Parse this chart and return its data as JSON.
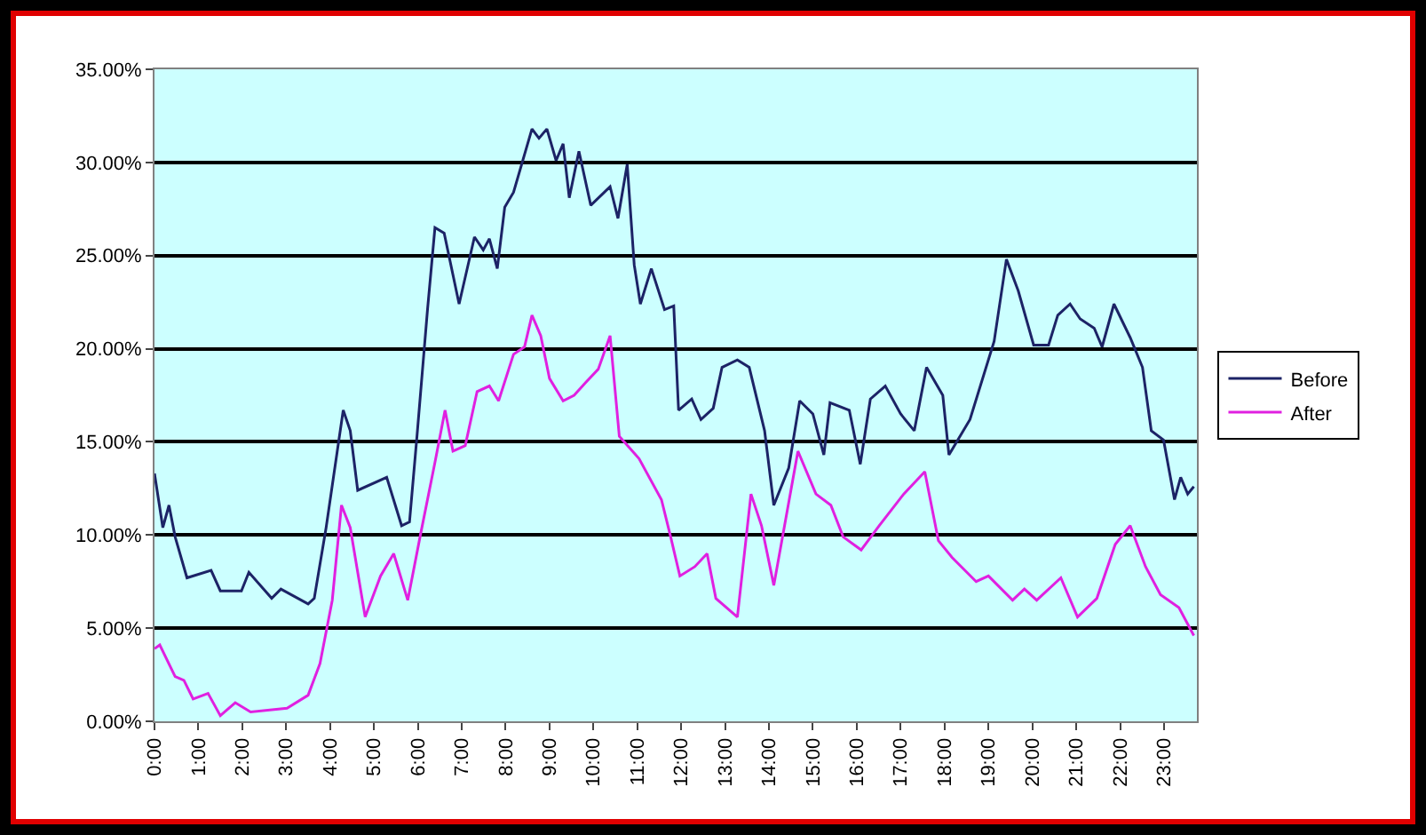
{
  "chart_data": {
    "type": "line",
    "xlim": [
      0,
      23.75
    ],
    "xticks": [
      {
        "value": 0,
        "label": "0:00"
      },
      {
        "value": 1,
        "label": "1:00"
      },
      {
        "value": 2,
        "label": "2:00"
      },
      {
        "value": 3,
        "label": "3:00"
      },
      {
        "value": 4,
        "label": "4:00"
      },
      {
        "value": 5,
        "label": "5:00"
      },
      {
        "value": 6,
        "label": "6:00"
      },
      {
        "value": 7,
        "label": "7:00"
      },
      {
        "value": 8,
        "label": "8:00"
      },
      {
        "value": 9,
        "label": "9:00"
      },
      {
        "value": 10,
        "label": "10:00"
      },
      {
        "value": 11,
        "label": "11:00"
      },
      {
        "value": 12,
        "label": "12:00"
      },
      {
        "value": 13,
        "label": "13:00"
      },
      {
        "value": 14,
        "label": "14:00"
      },
      {
        "value": 15,
        "label": "15:00"
      },
      {
        "value": 16,
        "label": "16:00"
      },
      {
        "value": 17,
        "label": "17:00"
      },
      {
        "value": 18,
        "label": "18:00"
      },
      {
        "value": 19,
        "label": "19:00"
      },
      {
        "value": 20,
        "label": "20:00"
      },
      {
        "value": 21,
        "label": "21:00"
      },
      {
        "value": 22,
        "label": "22:00"
      },
      {
        "value": 23,
        "label": "23:00"
      }
    ],
    "ylim": [
      0,
      35
    ],
    "yticks": [
      {
        "value": 0,
        "label": "0.00%"
      },
      {
        "value": 5,
        "label": "5.00%"
      },
      {
        "value": 10,
        "label": "10.00%"
      },
      {
        "value": 15,
        "label": "15.00%"
      },
      {
        "value": 20,
        "label": "20.00%"
      },
      {
        "value": 25,
        "label": "25.00%"
      },
      {
        "value": 30,
        "label": "30.00%"
      },
      {
        "value": 35,
        "label": "35.00%"
      }
    ],
    "grid": "y",
    "legend": "right",
    "marker": "none",
    "line_style": "solid",
    "series": [
      {
        "name": "Before",
        "color": "#1c2366",
        "x": [
          0,
          0.19,
          0.33,
          0.47,
          0.74,
          1.29,
          1.5,
          1.98,
          2.15,
          2.67,
          2.88,
          3.5,
          3.64,
          3.91,
          4.3,
          4.46,
          4.63,
          5.29,
          5.63,
          5.81,
          5.98,
          6.22,
          6.39,
          6.6,
          6.94,
          7.29,
          7.49,
          7.63,
          7.81,
          7.98,
          8.18,
          8.6,
          8.76,
          8.94,
          9.15,
          9.31,
          9.45,
          9.67,
          9.94,
          10.38,
          10.56,
          10.77,
          10.93,
          11.07,
          11.32,
          11.62,
          11.83,
          11.94,
          12.24,
          12.45,
          12.73,
          12.93,
          13.28,
          13.55,
          13.9,
          14.11,
          14.45,
          14.7,
          15.0,
          15.25,
          15.39,
          15.83,
          16.08,
          16.31,
          16.65,
          17.0,
          17.31,
          17.59,
          17.96,
          18.1,
          18.58,
          19.13,
          19.41,
          19.68,
          20.03,
          20.37,
          20.58,
          20.86,
          21.09,
          21.41,
          21.59,
          21.86,
          22.23,
          22.51,
          22.71,
          22.99,
          23.24,
          23.38,
          23.54,
          23.68
        ],
        "values": [
          13.3,
          10.4,
          11.6,
          9.9,
          7.7,
          8.1,
          7.0,
          7.0,
          8.0,
          6.6,
          7.1,
          6.3,
          6.6,
          10.4,
          16.7,
          15.6,
          12.4,
          13.1,
          10.5,
          10.7,
          15.3,
          22.1,
          26.5,
          26.2,
          22.4,
          26.0,
          25.3,
          25.9,
          24.3,
          27.6,
          28.4,
          31.8,
          31.3,
          31.8,
          30.1,
          31.0,
          28.1,
          30.6,
          27.7,
          28.7,
          27.0,
          29.9,
          24.5,
          22.4,
          24.3,
          22.1,
          22.3,
          16.7,
          17.3,
          16.2,
          16.8,
          19.0,
          19.4,
          19.0,
          15.6,
          11.6,
          13.6,
          17.2,
          16.5,
          14.3,
          17.1,
          16.7,
          13.8,
          17.3,
          18.0,
          16.5,
          15.6,
          19.0,
          17.5,
          14.3,
          16.2,
          20.4,
          24.8,
          23.1,
          20.2,
          20.2,
          21.8,
          22.4,
          21.6,
          21.1,
          20.1,
          22.4,
          20.6,
          19.0,
          15.6,
          15.1,
          11.9,
          13.1,
          12.2,
          12.6
        ]
      },
      {
        "name": "After",
        "color": "#e020e0",
        "x": [
          0,
          0.12,
          0.47,
          0.67,
          0.88,
          1.22,
          1.5,
          1.84,
          2.19,
          3.02,
          3.5,
          3.77,
          4.05,
          4.26,
          4.46,
          4.8,
          5.15,
          5.45,
          5.77,
          6.05,
          6.39,
          6.62,
          6.8,
          7.08,
          7.35,
          7.63,
          7.84,
          8.18,
          8.43,
          8.6,
          8.8,
          9.0,
          9.31,
          9.56,
          9.83,
          10.11,
          10.38,
          10.59,
          11.04,
          11.55,
          11.76,
          11.97,
          12.31,
          12.59,
          12.79,
          13.28,
          13.59,
          13.83,
          14.11,
          14.66,
          15.07,
          15.41,
          15.69,
          16.1,
          16.51,
          17.07,
          17.55,
          17.86,
          18.17,
          18.72,
          19.0,
          19.55,
          19.82,
          20.1,
          20.65,
          21.03,
          21.47,
          21.89,
          22.23,
          22.58,
          22.92,
          23.34,
          23.68
        ],
        "values": [
          3.9,
          4.1,
          2.4,
          2.2,
          1.2,
          1.5,
          0.3,
          1.0,
          0.5,
          0.7,
          1.4,
          3.1,
          6.5,
          11.6,
          10.4,
          5.6,
          7.8,
          9.0,
          6.5,
          9.9,
          13.9,
          16.7,
          14.5,
          14.8,
          17.7,
          18.0,
          17.2,
          19.7,
          20.1,
          21.8,
          20.7,
          18.4,
          17.2,
          17.5,
          18.2,
          18.9,
          20.7,
          15.3,
          14.1,
          11.9,
          9.9,
          7.8,
          8.3,
          9.0,
          6.6,
          5.6,
          12.2,
          10.5,
          7.3,
          14.5,
          12.2,
          11.6,
          9.9,
          9.2,
          10.5,
          12.2,
          13.4,
          9.7,
          8.8,
          7.5,
          7.8,
          6.5,
          7.1,
          6.5,
          7.7,
          5.6,
          6.6,
          9.5,
          10.5,
          8.3,
          6.8,
          6.1,
          4.6
        ]
      }
    ]
  }
}
